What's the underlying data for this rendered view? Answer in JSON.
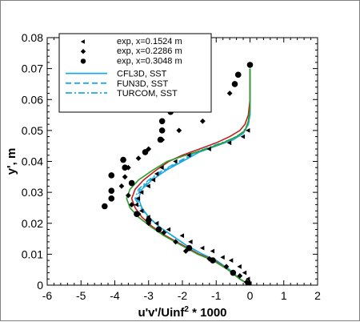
{
  "chart_data": {
    "type": "line",
    "xlabel": "u'v'/Uinf",
    "xlabel_sup": "2",
    "xlabel_suffix": " * 1000",
    "ylabel": "y', m",
    "xlim": [
      -6,
      2
    ],
    "ylim": [
      0,
      0.08
    ],
    "x_ticks": [
      -6,
      -5,
      -4,
      -3,
      -2,
      -1,
      0,
      1,
      2
    ],
    "y_ticks": [
      0,
      0.01,
      0.02,
      0.03,
      0.04,
      0.05,
      0.06,
      0.07,
      0.08
    ],
    "legend_position": "top-left",
    "grid": false,
    "scatter_series": [
      {
        "name": "exp, x=0.1524 m",
        "marker": "triangle-left",
        "color": "#000000",
        "points": [
          [
            0.0,
            0.0005
          ],
          [
            -0.05,
            0.002
          ],
          [
            -0.15,
            0.004
          ],
          [
            -0.3,
            0.006
          ],
          [
            -0.55,
            0.008
          ],
          [
            -0.8,
            0.009
          ],
          [
            -1.1,
            0.011
          ],
          [
            -1.4,
            0.012
          ],
          [
            -1.75,
            0.014
          ],
          [
            -2.0,
            0.016
          ],
          [
            -2.4,
            0.018
          ],
          [
            -2.75,
            0.02
          ],
          [
            -3.0,
            0.022
          ],
          [
            -3.2,
            0.024
          ],
          [
            -3.35,
            0.026
          ],
          [
            -3.3,
            0.028
          ],
          [
            -3.2,
            0.03
          ],
          [
            -3.0,
            0.032
          ],
          [
            -2.85,
            0.034
          ],
          [
            -2.75,
            0.036
          ],
          [
            -2.6,
            0.038
          ],
          [
            -2.2,
            0.04
          ],
          [
            -1.8,
            0.042
          ],
          [
            -1.2,
            0.044
          ],
          [
            -0.6,
            0.046
          ],
          [
            -0.2,
            0.048
          ],
          [
            -0.05,
            0.05
          ]
        ]
      },
      {
        "name": "exp, x=0.2286 m",
        "marker": "diamond",
        "color": "#000000",
        "points": [
          [
            -0.1,
            0.001
          ],
          [
            -0.3,
            0.003
          ],
          [
            -0.7,
            0.006
          ],
          [
            -1.2,
            0.0085
          ],
          [
            -1.9,
            0.011
          ],
          [
            -2.2,
            0.014
          ],
          [
            -2.55,
            0.017
          ],
          [
            -3.0,
            0.02
          ],
          [
            -3.3,
            0.023
          ],
          [
            -3.5,
            0.026
          ],
          [
            -3.6,
            0.029
          ],
          [
            -3.8,
            0.032
          ],
          [
            -3.7,
            0.035
          ],
          [
            -3.6,
            0.038
          ],
          [
            -3.3,
            0.041
          ],
          [
            -3.0,
            0.044
          ],
          [
            -2.6,
            0.047
          ],
          [
            -2.1,
            0.05
          ],
          [
            -1.4,
            0.053
          ],
          [
            -0.6,
            0.062
          ]
        ]
      },
      {
        "name": "exp, x=0.3048 m",
        "marker": "circle",
        "color": "#000000",
        "points": [
          [
            -0.05,
            0.0005
          ],
          [
            -0.5,
            0.004
          ],
          [
            -1.1,
            0.008
          ],
          [
            -1.8,
            0.012
          ],
          [
            -2.7,
            0.018
          ],
          [
            -3.0,
            0.021
          ],
          [
            -3.35,
            0.023
          ],
          [
            -4.3,
            0.0255
          ],
          [
            -4.1,
            0.028
          ],
          [
            -4.1,
            0.0305
          ],
          [
            -3.5,
            0.033
          ],
          [
            -4.1,
            0.0355
          ],
          [
            -3.7,
            0.038
          ],
          [
            -3.75,
            0.0405
          ],
          [
            -3.1,
            0.043
          ],
          [
            -2.65,
            0.047
          ],
          [
            -2.6,
            0.05
          ],
          [
            -2.6,
            0.053
          ],
          [
            -2.35,
            0.056
          ],
          [
            -1.9,
            0.059
          ],
          [
            -1.3,
            0.062
          ],
          [
            -0.45,
            0.065
          ],
          [
            -0.35,
            0.068
          ],
          [
            0.0,
            0.0712
          ]
        ]
      }
    ],
    "line_series": [
      {
        "name": "CFL3D, SST",
        "dash": "solid",
        "color": "#1fa8e0",
        "points": [
          [
            0,
            0
          ],
          [
            -0.3,
            0.002
          ],
          [
            -0.6,
            0.005
          ],
          [
            -1.0,
            0.008
          ],
          [
            -1.4,
            0.01
          ],
          [
            -1.9,
            0.013
          ],
          [
            -2.3,
            0.016
          ],
          [
            -2.7,
            0.019
          ],
          [
            -3.0,
            0.022
          ],
          [
            -3.2,
            0.025
          ],
          [
            -3.3,
            0.028
          ],
          [
            -3.2,
            0.031
          ],
          [
            -2.9,
            0.034
          ],
          [
            -2.5,
            0.037
          ],
          [
            -2.0,
            0.04
          ],
          [
            -1.5,
            0.043
          ],
          [
            -1.0,
            0.045
          ],
          [
            -0.5,
            0.047
          ],
          [
            -0.2,
            0.049
          ],
          [
            -0.05,
            0.052
          ],
          [
            0,
            0.055
          ],
          [
            0,
            0.07
          ]
        ]
      },
      {
        "name": "FUN3D, SST",
        "dash": "dashed",
        "color": "#1fa8e0",
        "points": [
          [
            0,
            0
          ],
          [
            -0.3,
            0.002
          ],
          [
            -0.6,
            0.005
          ],
          [
            -1.0,
            0.008
          ],
          [
            -1.4,
            0.01
          ],
          [
            -1.9,
            0.013
          ],
          [
            -2.3,
            0.016
          ],
          [
            -2.7,
            0.019
          ],
          [
            -3.0,
            0.022
          ],
          [
            -3.2,
            0.025
          ],
          [
            -3.35,
            0.028
          ],
          [
            -3.25,
            0.031
          ],
          [
            -2.95,
            0.034
          ],
          [
            -2.55,
            0.037
          ],
          [
            -2.05,
            0.04
          ],
          [
            -1.55,
            0.043
          ],
          [
            -1.05,
            0.045
          ],
          [
            -0.55,
            0.047
          ],
          [
            -0.2,
            0.049
          ],
          [
            -0.05,
            0.052
          ],
          [
            0,
            0.055
          ],
          [
            0,
            0.07
          ]
        ]
      },
      {
        "name": "TURCOM, SST",
        "dash": "dashdot",
        "color": "#1fa8e0",
        "points": [
          [
            0,
            0
          ],
          [
            -0.3,
            0.002
          ],
          [
            -0.6,
            0.005
          ],
          [
            -1.0,
            0.008
          ],
          [
            -1.4,
            0.01
          ],
          [
            -1.9,
            0.013
          ],
          [
            -2.3,
            0.016
          ],
          [
            -2.7,
            0.019
          ],
          [
            -3.0,
            0.022
          ],
          [
            -3.25,
            0.025
          ],
          [
            -3.4,
            0.028
          ],
          [
            -3.3,
            0.031
          ],
          [
            -3.0,
            0.034
          ],
          [
            -2.6,
            0.037
          ],
          [
            -2.1,
            0.04
          ],
          [
            -1.6,
            0.043
          ],
          [
            -1.1,
            0.045
          ],
          [
            -0.6,
            0.047
          ],
          [
            -0.25,
            0.049
          ],
          [
            -0.05,
            0.052
          ],
          [
            0,
            0.055
          ],
          [
            0,
            0.07
          ]
        ]
      },
      {
        "name": "",
        "dash": "solid",
        "color": "#c0201f",
        "points": [
          [
            0,
            0
          ],
          [
            -0.3,
            0.002
          ],
          [
            -0.65,
            0.005
          ],
          [
            -1.05,
            0.008
          ],
          [
            -1.5,
            0.01
          ],
          [
            -2.0,
            0.013
          ],
          [
            -2.5,
            0.016
          ],
          [
            -2.9,
            0.019
          ],
          [
            -3.2,
            0.022
          ],
          [
            -3.4,
            0.025
          ],
          [
            -3.5,
            0.028
          ],
          [
            -3.4,
            0.031
          ],
          [
            -3.15,
            0.034
          ],
          [
            -2.8,
            0.037
          ],
          [
            -2.4,
            0.04
          ],
          [
            -2.0,
            0.042
          ],
          [
            -1.5,
            0.044
          ],
          [
            -1.0,
            0.046
          ],
          [
            -0.6,
            0.048
          ],
          [
            -0.3,
            0.05
          ],
          [
            -0.15,
            0.052
          ],
          [
            -0.05,
            0.055
          ],
          [
            0,
            0.06
          ],
          [
            0,
            0.07
          ]
        ]
      },
      {
        "name": "",
        "dash": "solid",
        "color": "#2ca02c",
        "points": [
          [
            0,
            0
          ],
          [
            -0.3,
            0.002
          ],
          [
            -0.65,
            0.005
          ],
          [
            -1.1,
            0.008
          ],
          [
            -1.55,
            0.01
          ],
          [
            -2.05,
            0.013
          ],
          [
            -2.55,
            0.016
          ],
          [
            -2.95,
            0.019
          ],
          [
            -3.3,
            0.022
          ],
          [
            -3.55,
            0.025
          ],
          [
            -3.65,
            0.028
          ],
          [
            -3.55,
            0.031
          ],
          [
            -3.3,
            0.034
          ],
          [
            -2.9,
            0.037
          ],
          [
            -2.45,
            0.04
          ],
          [
            -1.9,
            0.042
          ],
          [
            -1.3,
            0.044
          ],
          [
            -0.8,
            0.046
          ],
          [
            -0.4,
            0.048
          ],
          [
            -0.15,
            0.05
          ],
          [
            -0.05,
            0.053
          ],
          [
            0,
            0.057
          ],
          [
            0,
            0.07
          ]
        ]
      }
    ]
  }
}
